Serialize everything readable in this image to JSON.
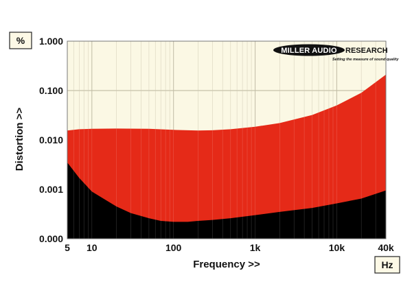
{
  "chart_data": {
    "type": "area",
    "xscale": "log",
    "yscale": "log",
    "xlim": [
      5,
      40000
    ],
    "ylim": [
      0.0001,
      1
    ],
    "xlabel": "Frequency >>",
    "ylabel": "Distortion >>",
    "x_unit": "Hz",
    "y_unit": "%",
    "x_ticks": [
      {
        "value": 5,
        "label": "5"
      },
      {
        "value": 10,
        "label": "10"
      },
      {
        "value": 100,
        "label": "100"
      },
      {
        "value": 1000,
        "label": "1k"
      },
      {
        "value": 10000,
        "label": "10k"
      },
      {
        "value": 40000,
        "label": "40k"
      }
    ],
    "y_ticks": [
      {
        "value": 1,
        "label": "1.000"
      },
      {
        "value": 0.1,
        "label": "0.100"
      },
      {
        "value": 0.01,
        "label": "0.010"
      },
      {
        "value": 0.001,
        "label": "0.001"
      },
      {
        "value": 0.0001,
        "label": "0.000"
      }
    ],
    "grid": true,
    "series": [
      {
        "color": "#e52a18",
        "x": [
          5,
          7,
          10,
          20,
          50,
          100,
          200,
          300,
          500,
          1000,
          2000,
          5000,
          10000,
          20000,
          40000
        ],
        "y": [
          0.0155,
          0.0165,
          0.0168,
          0.017,
          0.0168,
          0.016,
          0.0155,
          0.0157,
          0.0165,
          0.0185,
          0.022,
          0.032,
          0.05,
          0.09,
          0.21
        ]
      },
      {
        "color": "#000000",
        "x": [
          5,
          7,
          10,
          15,
          20,
          30,
          50,
          70,
          100,
          150,
          200,
          300,
          500,
          1000,
          2000,
          5000,
          10000,
          20000,
          40000
        ],
        "y": [
          0.0035,
          0.0017,
          0.0009,
          0.0006,
          0.00045,
          0.00033,
          0.00026,
          0.00023,
          0.00022,
          0.00022,
          0.00023,
          0.00024,
          0.00026,
          0.0003,
          0.00035,
          0.00042,
          0.00052,
          0.00065,
          0.00095
        ]
      }
    ],
    "background_color": "#fbf8e4"
  },
  "logo": {
    "main": "MILLER AUDIO",
    "research": "RESEARCH",
    "tagline": "Setting the measure of sound quality"
  }
}
